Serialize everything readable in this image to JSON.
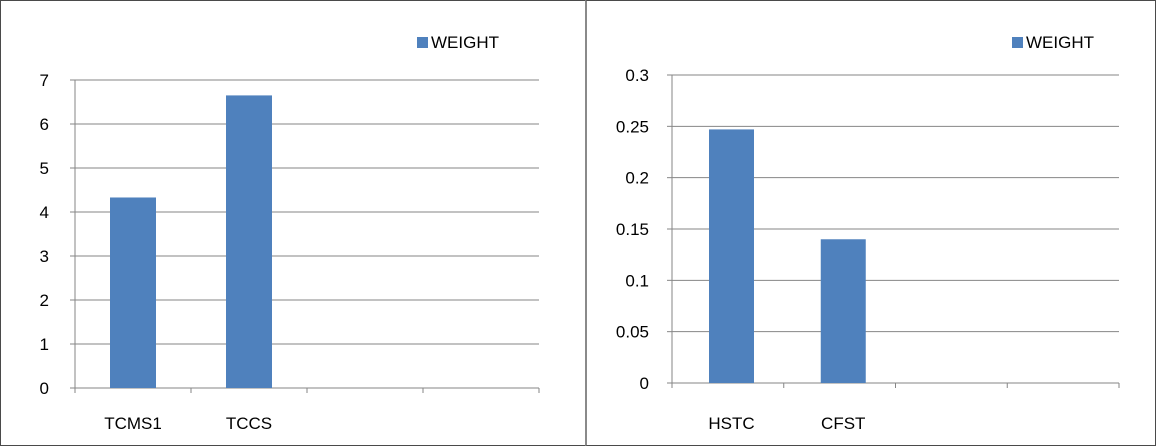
{
  "colors": {
    "bar": "#4f81bd",
    "grid": "#868686",
    "axis": "#868686",
    "text": "#000000"
  },
  "chart_data": [
    {
      "type": "bar",
      "title": "",
      "xlabel": "",
      "ylabel": "",
      "categories": [
        "TCMS1",
        "TCCS",
        "",
        ""
      ],
      "series": [
        {
          "name": "WEIGHT",
          "values": [
            4.33,
            6.65,
            null,
            null
          ]
        }
      ],
      "ylim": [
        0,
        7
      ],
      "yticks": [
        "0",
        "1",
        "2",
        "3",
        "4",
        "5",
        "6",
        "7"
      ],
      "grid": true,
      "legend": "top-right"
    },
    {
      "type": "bar",
      "title": "",
      "xlabel": "",
      "ylabel": "",
      "categories": [
        "HSTC",
        "CFST",
        "",
        ""
      ],
      "series": [
        {
          "name": "WEIGHT",
          "values": [
            0.247,
            0.14,
            null,
            null
          ]
        }
      ],
      "ylim": [
        0,
        0.3
      ],
      "yticks": [
        "0",
        "0.05",
        "0.1",
        "0.15",
        "0.2",
        "0.25",
        "0.3"
      ],
      "grid": true,
      "legend": "top-right"
    }
  ]
}
